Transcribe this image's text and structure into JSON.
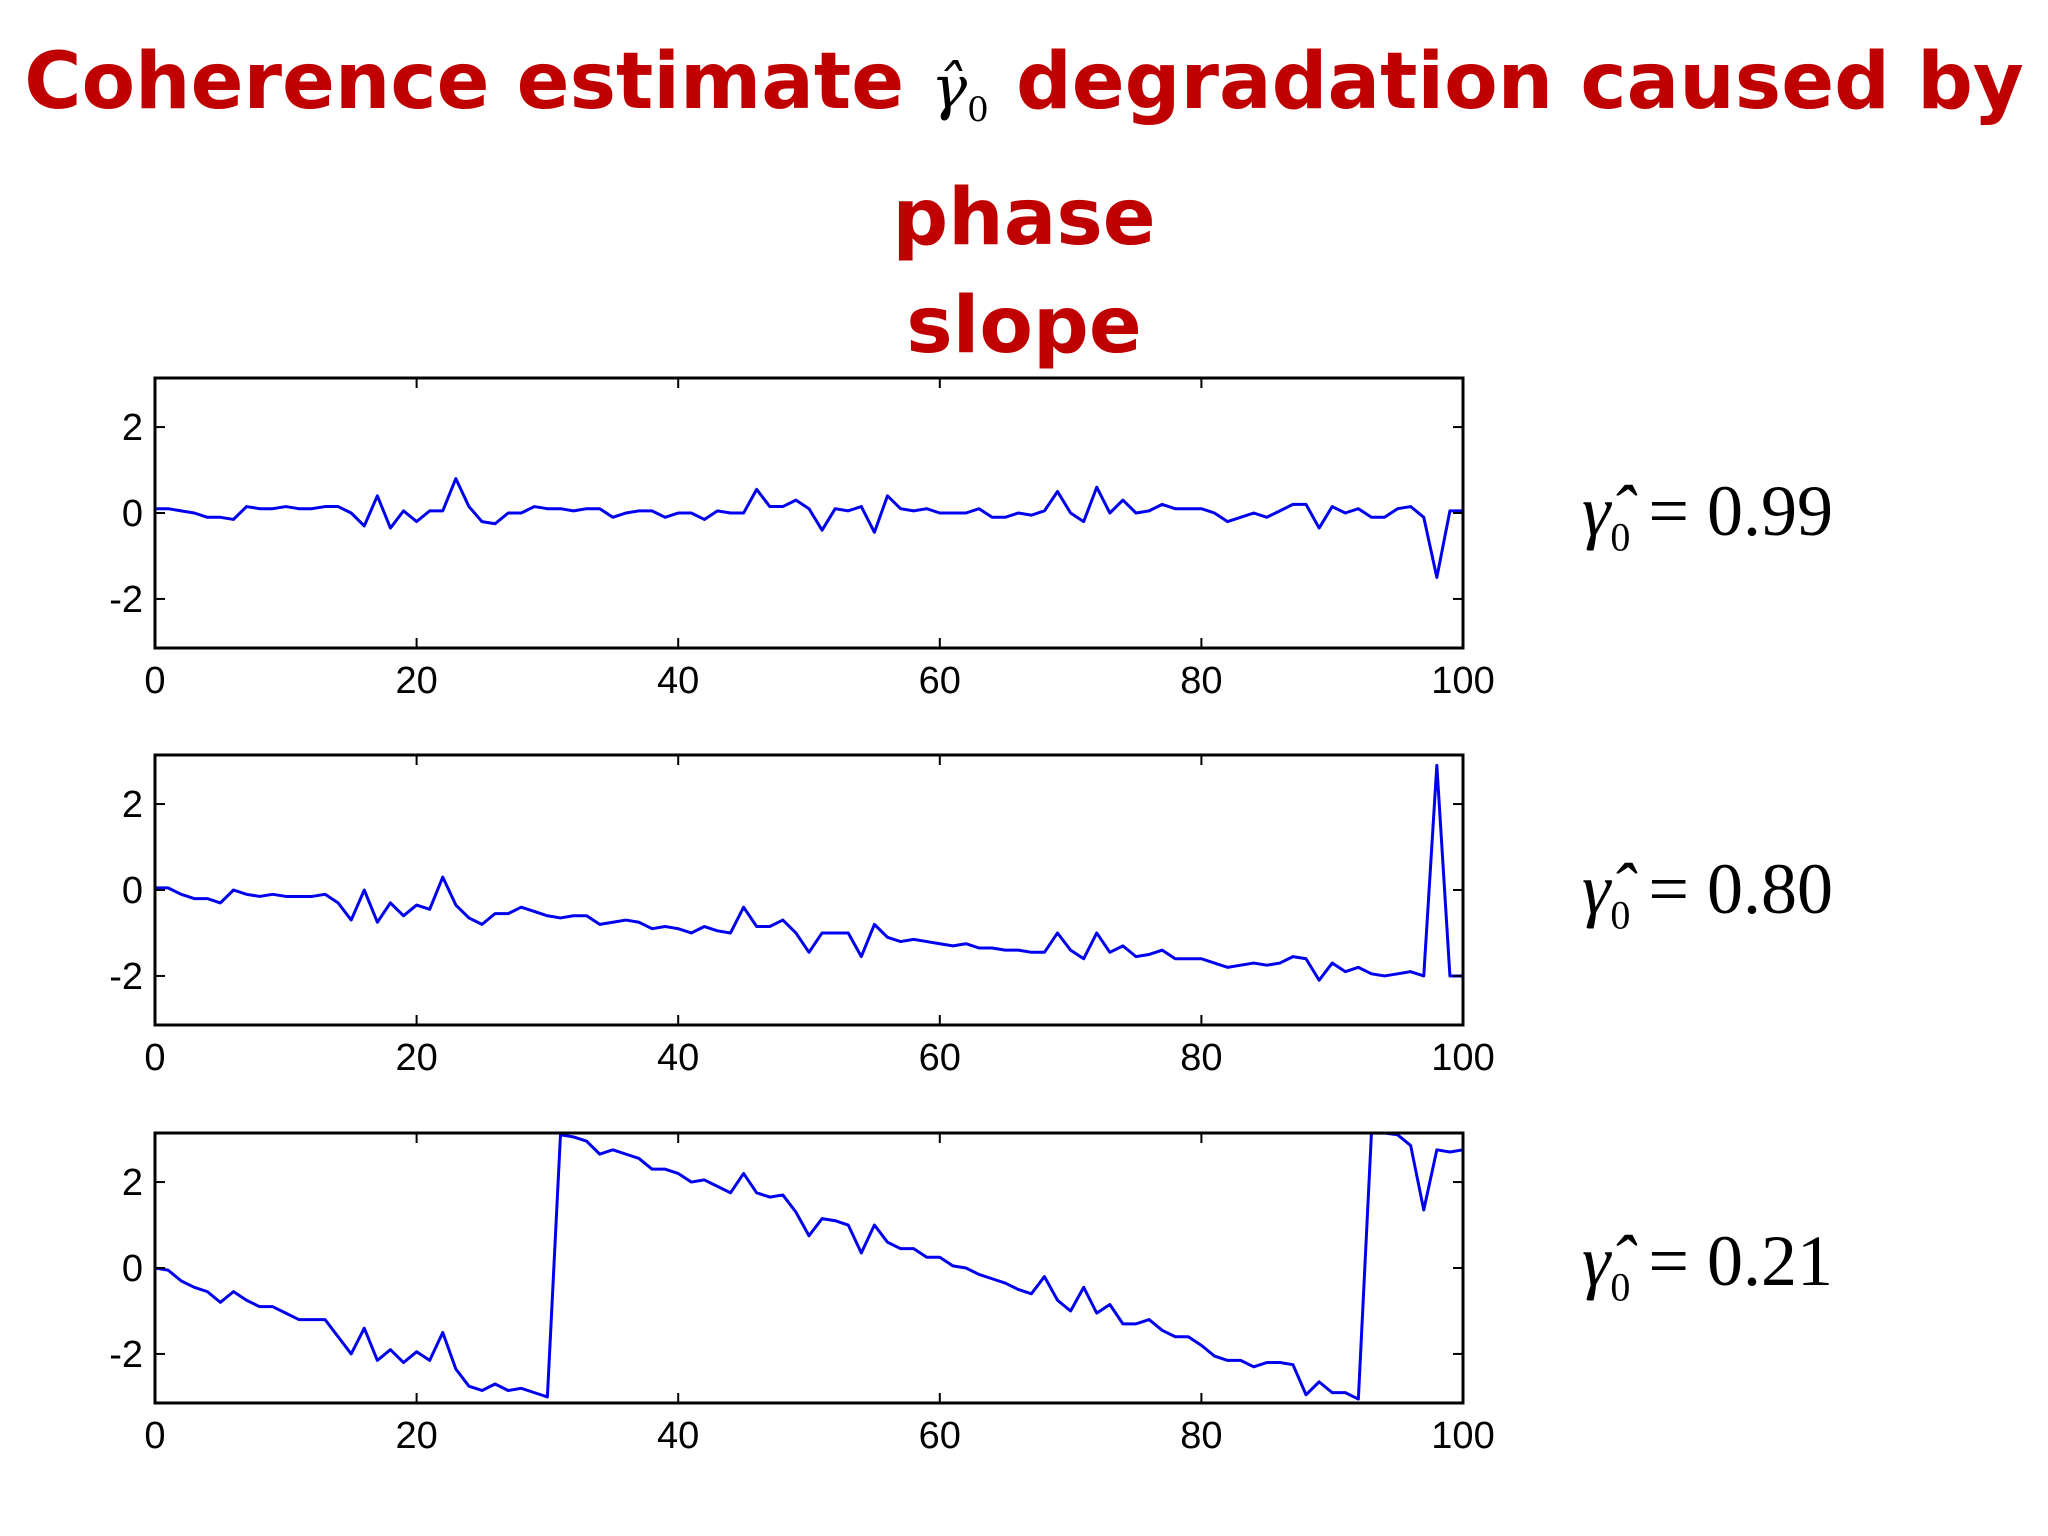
{
  "title": {
    "before": "Coherence estimate",
    "symbol": "γ̂",
    "symbol_sub": "0",
    "after": "degradation caused by phase",
    "line2": "slope"
  },
  "chart_data": [
    {
      "type": "line",
      "ylim": [
        -3.1416,
        3.1416
      ],
      "xlim": [
        0,
        100
      ],
      "xticks": [
        "0",
        "20",
        "40",
        "60",
        "80",
        "100"
      ],
      "yticks": [
        "2",
        "0",
        "-2"
      ],
      "grid": false,
      "line_color": "#0000ee",
      "annotation": {
        "symbol": "γ̂",
        "sub": "0",
        "eq": "= 0.99"
      },
      "series": [
        {
          "values": [
            0.1,
            0.1,
            0.05,
            0.0,
            -0.1,
            -0.1,
            -0.15,
            0.15,
            0.1,
            0.1,
            0.15,
            0.1,
            0.1,
            0.15,
            0.15,
            0.0,
            -0.3,
            0.4,
            -0.35,
            0.05,
            -0.2,
            0.05,
            0.05,
            0.8,
            0.15,
            -0.2,
            -0.25,
            0.0,
            0.0,
            0.15,
            0.1,
            0.1,
            0.05,
            0.1,
            0.1,
            -0.1,
            0.0,
            0.05,
            0.05,
            -0.1,
            0.0,
            0.0,
            -0.15,
            0.05,
            0.0,
            0.0,
            0.55,
            0.15,
            0.15,
            0.3,
            0.1,
            -0.4,
            0.1,
            0.05,
            0.15,
            -0.45,
            0.4,
            0.1,
            0.05,
            0.1,
            0.0,
            0.0,
            0.0,
            0.1,
            -0.1,
            -0.1,
            0.0,
            -0.05,
            0.05,
            0.5,
            0.0,
            -0.2,
            0.6,
            0.0,
            0.3,
            0.0,
            0.05,
            0.2,
            0.1,
            0.1,
            0.1,
            0.0,
            -0.2,
            -0.1,
            0.0,
            -0.1,
            0.05,
            0.2,
            0.2,
            -0.35,
            0.15,
            0.0,
            0.1,
            -0.1,
            -0.1,
            0.1,
            0.15,
            -0.1,
            -1.5,
            0.05,
            0.05
          ]
        }
      ]
    },
    {
      "type": "line",
      "ylim": [
        -3.1416,
        3.1416
      ],
      "xlim": [
        0,
        100
      ],
      "xticks": [
        "0",
        "20",
        "40",
        "60",
        "80",
        "100"
      ],
      "yticks": [
        "2",
        "0",
        "-2"
      ],
      "grid": false,
      "line_color": "#0000ee",
      "annotation": {
        "symbol": "γ̂",
        "sub": "0",
        "eq": "= 0.80"
      },
      "series": [
        {
          "values": [
            0.05,
            0.05,
            -0.1,
            -0.2,
            -0.2,
            -0.3,
            0.0,
            -0.1,
            -0.15,
            -0.1,
            -0.15,
            -0.15,
            -0.15,
            -0.1,
            -0.3,
            -0.7,
            0.0,
            -0.75,
            -0.3,
            -0.6,
            -0.35,
            -0.45,
            0.3,
            -0.35,
            -0.65,
            -0.8,
            -0.55,
            -0.55,
            -0.4,
            -0.5,
            -0.6,
            -0.65,
            -0.6,
            -0.6,
            -0.8,
            -0.75,
            -0.7,
            -0.75,
            -0.9,
            -0.85,
            -0.9,
            -1.0,
            -0.85,
            -0.95,
            -1.0,
            -0.4,
            -0.85,
            -0.85,
            -0.7,
            -1.0,
            -1.45,
            -1.0,
            -1.0,
            -1.0,
            -1.55,
            -0.8,
            -1.1,
            -1.2,
            -1.15,
            -1.2,
            -1.25,
            -1.3,
            -1.25,
            -1.35,
            -1.35,
            -1.4,
            -1.4,
            -1.45,
            -1.45,
            -1.0,
            -1.4,
            -1.6,
            -1.0,
            -1.45,
            -1.3,
            -1.55,
            -1.5,
            -1.4,
            -1.6,
            -1.6,
            -1.6,
            -1.7,
            -1.8,
            -1.75,
            -1.7,
            -1.75,
            -1.7,
            -1.55,
            -1.6,
            -2.1,
            -1.7,
            -1.9,
            -1.8,
            -1.95,
            -2.0,
            -1.95,
            -1.9,
            -2.0,
            2.9,
            -2.0,
            -2.0
          ]
        }
      ]
    },
    {
      "type": "line",
      "ylim": [
        -3.1416,
        3.1416
      ],
      "xlim": [
        0,
        100
      ],
      "xticks": [
        "0",
        "20",
        "40",
        "60",
        "80",
        "100"
      ],
      "yticks": [
        "2",
        "0",
        "-2"
      ],
      "grid": false,
      "line_color": "#0000ee",
      "annotation": {
        "symbol": "γ̂",
        "sub": "0",
        "eq": "= 0.21"
      },
      "series": [
        {
          "values": [
            0.0,
            -0.05,
            -0.3,
            -0.45,
            -0.55,
            -0.8,
            -0.55,
            -0.75,
            -0.9,
            -0.9,
            -1.05,
            -1.2,
            -1.2,
            -1.2,
            -1.6,
            -2.0,
            -1.4,
            -2.15,
            -1.9,
            -2.2,
            -1.95,
            -2.15,
            -1.5,
            -2.35,
            -2.75,
            -2.85,
            -2.7,
            -2.85,
            -2.8,
            -2.9,
            -3.0,
            3.1,
            3.05,
            2.95,
            2.65,
            2.75,
            2.65,
            2.55,
            2.3,
            2.3,
            2.2,
            2.0,
            2.05,
            1.9,
            1.75,
            2.2,
            1.75,
            1.65,
            1.7,
            1.3,
            0.75,
            1.15,
            1.1,
            1.0,
            0.35,
            1.0,
            0.6,
            0.45,
            0.45,
            0.25,
            0.25,
            0.05,
            0.0,
            -0.15,
            -0.25,
            -0.35,
            -0.5,
            -0.6,
            -0.2,
            -0.75,
            -1.0,
            -0.45,
            -1.05,
            -0.85,
            -1.3,
            -1.3,
            -1.2,
            -1.45,
            -1.6,
            -1.6,
            -1.8,
            -2.05,
            -2.15,
            -2.15,
            -2.3,
            -2.2,
            -2.2,
            -2.25,
            -2.95,
            -2.65,
            -2.9,
            -2.9,
            -3.05,
            3.14,
            3.14,
            3.1,
            2.85,
            1.35,
            2.75,
            2.7,
            2.75
          ]
        }
      ]
    }
  ]
}
